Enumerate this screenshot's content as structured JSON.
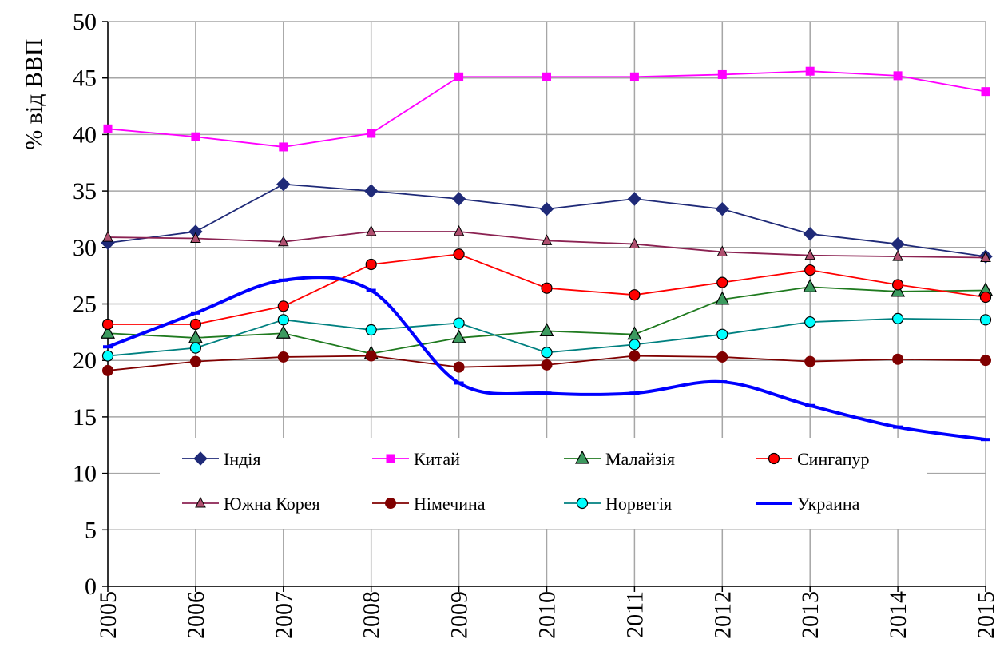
{
  "chart_data": {
    "type": "line",
    "title": "",
    "xlabel": "",
    "ylabel": "% від ВВП",
    "ylim": [
      0,
      50
    ],
    "yticks": [
      "0",
      "5",
      "10",
      "15",
      "20",
      "25",
      "30",
      "35",
      "40",
      "45",
      "50"
    ],
    "x": [
      "2005",
      "2006",
      "2007",
      "2008",
      "2009",
      "2010",
      "2011",
      "2012",
      "2013",
      "2014",
      "2015"
    ],
    "grid": true,
    "legend_position": "inside-lower-center",
    "series": [
      {
        "name": "Індія",
        "color": "#1f2a78",
        "marker": "diamond",
        "values": [
          30.4,
          31.4,
          35.6,
          35.0,
          34.3,
          33.4,
          34.3,
          33.4,
          31.2,
          30.3,
          29.2
        ]
      },
      {
        "name": "Китай",
        "color": "#ff00ff",
        "marker": "square",
        "values": [
          40.5,
          39.8,
          38.9,
          40.1,
          45.1,
          45.1,
          45.1,
          45.3,
          45.6,
          45.2,
          43.8
        ]
      },
      {
        "name": "Малайзія",
        "color": "#1f7a1f",
        "marker": "triangle",
        "values": [
          22.4,
          22.0,
          22.4,
          20.6,
          22.0,
          22.6,
          22.3,
          25.4,
          26.5,
          26.1,
          26.2
        ]
      },
      {
        "name": "Сингапур",
        "color": "#ff0000",
        "marker": "circle",
        "values": [
          23.2,
          23.2,
          24.8,
          28.5,
          29.4,
          26.4,
          25.8,
          26.9,
          28.0,
          26.7,
          25.6
        ]
      },
      {
        "name": "Южна Корея",
        "color": "#8b2252",
        "marker": "triangle-small",
        "values": [
          30.9,
          30.8,
          30.5,
          31.4,
          31.4,
          30.6,
          30.3,
          29.6,
          29.3,
          29.2,
          29.1
        ]
      },
      {
        "name": "Німечина",
        "color": "#800000",
        "marker": "circle-filled",
        "values": [
          19.1,
          19.9,
          20.3,
          20.4,
          19.4,
          19.6,
          20.4,
          20.3,
          19.9,
          20.1,
          20.0
        ]
      },
      {
        "name": "Норвегія",
        "color": "#008080",
        "marker": "circle-cyan",
        "values": [
          20.4,
          21.1,
          23.6,
          22.7,
          23.3,
          20.7,
          21.4,
          22.3,
          23.4,
          23.7,
          23.6
        ]
      },
      {
        "name": "Украина",
        "color": "#0000ff",
        "marker": "dash",
        "smooth": true,
        "values": [
          21.2,
          24.2,
          27.1,
          26.2,
          18.0,
          17.1,
          17.1,
          18.1,
          16.0,
          14.1,
          13.0
        ]
      }
    ]
  }
}
